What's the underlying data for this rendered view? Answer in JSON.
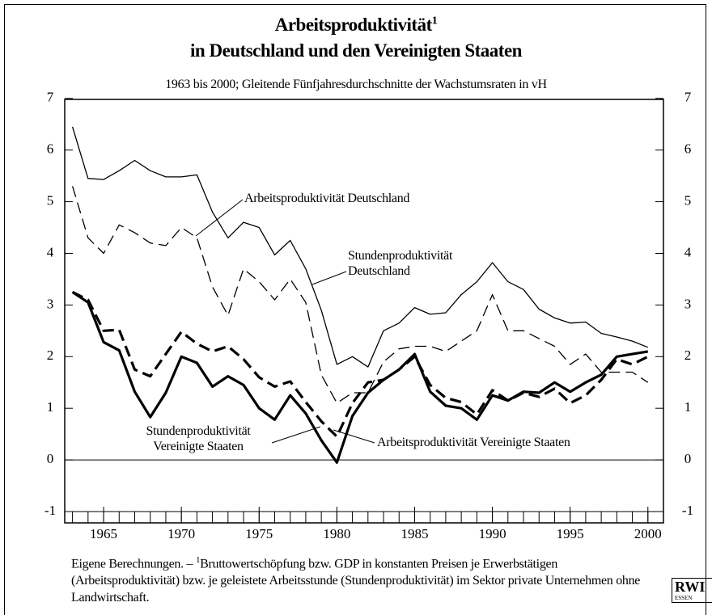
{
  "chart_data": {
    "type": "line",
    "title": [
      "Arbeitsproduktivität",
      "in Deutschland und den Vereinigten Staaten"
    ],
    "title_marker": "1",
    "subtitle": "1963 bis 2000; Gleitende Fünfjahresdurchschnitte der Wachstumsraten in vH",
    "x": [
      1963,
      1964,
      1965,
      1966,
      1967,
      1968,
      1969,
      1970,
      1971,
      1972,
      1973,
      1974,
      1975,
      1976,
      1977,
      1978,
      1979,
      1980,
      1981,
      1982,
      1983,
      1984,
      1985,
      1986,
      1987,
      1988,
      1989,
      1990,
      1991,
      1992,
      1993,
      1994,
      1995,
      1996,
      1997,
      1998,
      1999,
      2000
    ],
    "series": [
      {
        "name": "Arbeitsproduktivität Deutschland",
        "color": "#000000",
        "line_style": "solid",
        "line_width": 1.3,
        "values": [
          6.45,
          5.45,
          5.43,
          5.6,
          5.8,
          5.6,
          5.48,
          5.48,
          5.52,
          4.8,
          4.3,
          4.6,
          4.5,
          3.97,
          4.25,
          3.7,
          2.9,
          1.85,
          2.0,
          1.8,
          2.5,
          2.65,
          2.95,
          2.82,
          2.85,
          3.2,
          3.45,
          3.82,
          3.45,
          3.3,
          2.92,
          2.75,
          2.65,
          2.67,
          2.45,
          2.38,
          2.3,
          2.18
        ]
      },
      {
        "name": "Stundenproduktivität Deutschland",
        "color": "#000000",
        "line_style": "dashed",
        "line_width": 1.3,
        "values": [
          5.3,
          4.3,
          4.0,
          4.55,
          4.4,
          4.2,
          4.15,
          4.5,
          4.3,
          3.35,
          2.8,
          3.7,
          3.45,
          3.1,
          3.5,
          3.05,
          1.65,
          1.1,
          1.3,
          1.3,
          1.9,
          2.15,
          2.2,
          2.2,
          2.1,
          2.3,
          2.5,
          3.2,
          2.5,
          2.5,
          2.35,
          2.2,
          1.85,
          2.05,
          1.7,
          1.7,
          1.7,
          1.5
        ]
      },
      {
        "name": "Stundenproduktivität Vereinigte Staaten",
        "color": "#000000",
        "line_style": "solid",
        "line_width": 3.2,
        "values": [
          3.25,
          3.05,
          2.28,
          2.12,
          1.32,
          0.83,
          1.3,
          2.0,
          1.88,
          1.42,
          1.62,
          1.45,
          1.0,
          0.78,
          1.25,
          0.9,
          0.38,
          -0.05,
          0.85,
          1.3,
          1.55,
          1.75,
          2.05,
          1.32,
          1.05,
          1.0,
          0.78,
          1.25,
          1.15,
          1.32,
          1.3,
          1.5,
          1.32,
          1.5,
          1.65,
          2.0,
          2.05,
          2.1
        ]
      },
      {
        "name": "Arbeitsproduktivität Vereinigte Staaten",
        "color": "#000000",
        "line_style": "dashed",
        "line_width": 3.2,
        "values": [
          3.25,
          3.1,
          2.5,
          2.52,
          1.75,
          1.62,
          2.05,
          2.48,
          2.25,
          2.1,
          2.2,
          1.95,
          1.6,
          1.42,
          1.52,
          1.12,
          0.75,
          0.45,
          1.1,
          1.5,
          1.55,
          1.75,
          2.0,
          1.45,
          1.2,
          1.12,
          0.88,
          1.35,
          1.15,
          1.3,
          1.22,
          1.38,
          1.1,
          1.25,
          1.55,
          1.95,
          1.85,
          2.0
        ]
      }
    ],
    "xlim": [
      1962.5,
      2001
    ],
    "xticks": [
      1965,
      1970,
      1975,
      1980,
      1985,
      1990,
      1995,
      2000
    ],
    "ylim": [
      -1,
      7.2
    ],
    "yticks": [
      -1,
      0,
      1,
      2,
      3,
      4,
      5,
      6,
      7
    ],
    "footnote": {
      "prefix": "Eigene Berechnungen. –",
      "marker": "1",
      "text": "Bruttowertschöpfung bzw. GDP in konstanten Preisen je Erwerbstätigen (Arbeitsproduktivität) bzw. je geleistete Arbeitsstunde (Stundenproduktivität) im Sektor private Unternehmen ohne Landwirtschaft."
    },
    "logo": [
      "RWI",
      "ESSEN"
    ]
  }
}
